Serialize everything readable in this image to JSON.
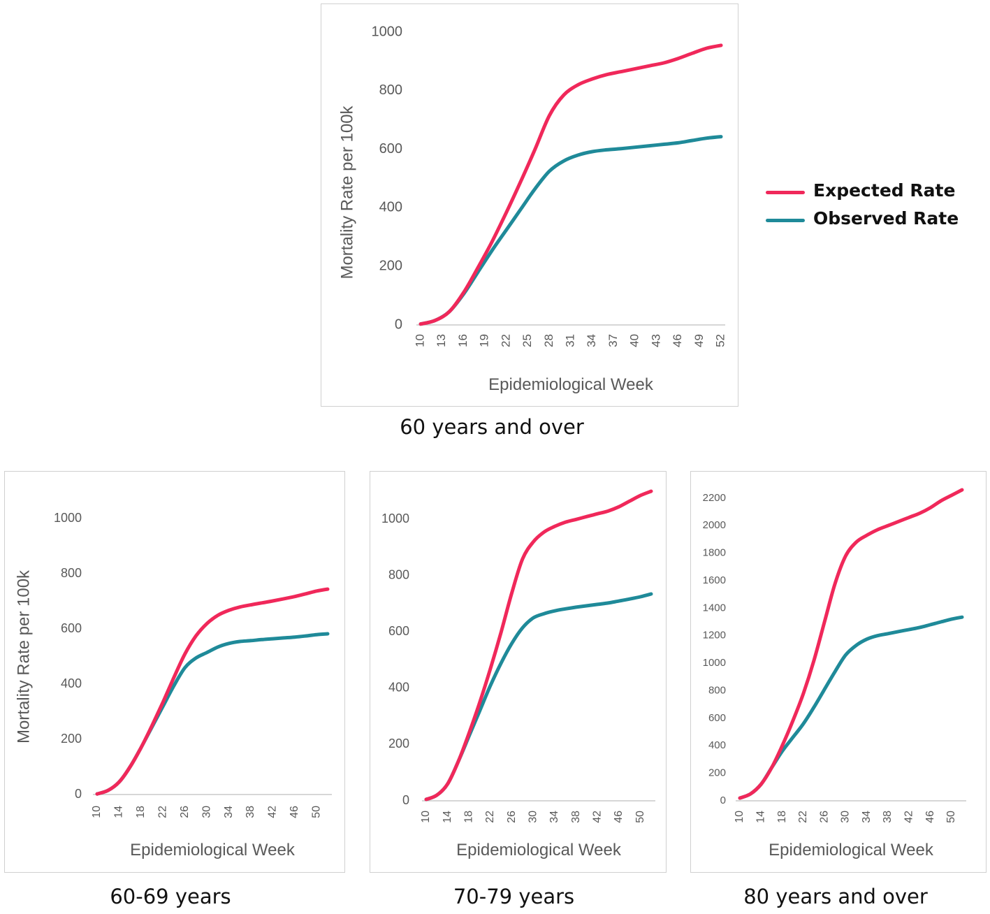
{
  "colors": {
    "expected": "#f0285a",
    "observed": "#1f8a99",
    "axis": "#bfbfbf",
    "text": "#595959"
  },
  "legend": [
    {
      "label": "Expected Rate",
      "color": "#f0285a"
    },
    {
      "label": "Observed Rate",
      "color": "#1f8a99"
    }
  ],
  "chart_data": [
    {
      "type": "line",
      "caption": "60 years and over",
      "xlabel": "Epidemiological Week",
      "ylabel": "Mortality Rate per 100k",
      "xlim": [
        10,
        52
      ],
      "ylim": [
        0,
        1000
      ],
      "yticks": [
        0,
        200,
        400,
        600,
        800,
        1000
      ],
      "xticks": [
        10,
        13,
        16,
        19,
        22,
        25,
        28,
        31,
        34,
        37,
        40,
        43,
        46,
        49,
        52
      ],
      "series": [
        {
          "name": "Expected Rate",
          "color": "#f0285a",
          "x": [
            10,
            12,
            14,
            16,
            18,
            20,
            22,
            24,
            26,
            28,
            30,
            32,
            34,
            36,
            38,
            40,
            42,
            44,
            46,
            48,
            50,
            52
          ],
          "y": [
            3,
            15,
            45,
            110,
            195,
            285,
            385,
            490,
            600,
            715,
            785,
            820,
            840,
            855,
            865,
            875,
            885,
            895,
            910,
            928,
            945,
            955
          ]
        },
        {
          "name": "Observed Rate",
          "color": "#1f8a99",
          "x": [
            10,
            12,
            14,
            16,
            18,
            20,
            22,
            24,
            26,
            28,
            30,
            32,
            34,
            36,
            38,
            40,
            42,
            44,
            46,
            48,
            50,
            52
          ],
          "y": [
            3,
            15,
            45,
            105,
            180,
            255,
            325,
            395,
            465,
            525,
            560,
            580,
            592,
            598,
            602,
            607,
            612,
            617,
            622,
            630,
            638,
            643
          ]
        }
      ]
    },
    {
      "type": "line",
      "caption": "60-69 years",
      "xlabel": "Epidemiological Week",
      "ylabel": "Mortality Rate per 100k",
      "xlim": [
        10,
        52
      ],
      "ylim": [
        0,
        1100
      ],
      "yticks": [
        0,
        200,
        400,
        600,
        800,
        1000
      ],
      "xticks": [
        10,
        14,
        18,
        22,
        26,
        30,
        34,
        38,
        42,
        46,
        50
      ],
      "series": [
        {
          "name": "Expected Rate",
          "color": "#f0285a",
          "x": [
            10,
            12,
            14,
            16,
            18,
            20,
            22,
            24,
            26,
            28,
            30,
            32,
            34,
            36,
            38,
            40,
            42,
            44,
            46,
            48,
            50,
            52
          ],
          "y": [
            2,
            15,
            45,
            100,
            170,
            250,
            335,
            425,
            510,
            575,
            620,
            650,
            668,
            680,
            688,
            695,
            702,
            710,
            718,
            728,
            738,
            745
          ]
        },
        {
          "name": "Observed Rate",
          "color": "#1f8a99",
          "x": [
            10,
            12,
            14,
            16,
            18,
            20,
            22,
            24,
            26,
            28,
            30,
            32,
            34,
            36,
            38,
            40,
            42,
            44,
            46,
            48,
            50,
            52
          ],
          "y": [
            2,
            15,
            45,
            100,
            170,
            245,
            320,
            395,
            460,
            495,
            515,
            535,
            548,
            555,
            558,
            562,
            565,
            568,
            571,
            575,
            580,
            583
          ]
        }
      ]
    },
    {
      "type": "line",
      "caption": "70-79 years",
      "xlabel": "Epidemiological Week",
      "ylabel": "",
      "xlim": [
        10,
        52
      ],
      "ylim": [
        0,
        1100
      ],
      "yticks": [
        0,
        200,
        400,
        600,
        800,
        1000
      ],
      "xticks": [
        10,
        14,
        18,
        22,
        26,
        30,
        34,
        38,
        42,
        46,
        50
      ],
      "series": [
        {
          "name": "Expected Rate",
          "color": "#f0285a",
          "x": [
            10,
            12,
            14,
            16,
            18,
            20,
            22,
            24,
            26,
            28,
            30,
            32,
            34,
            36,
            38,
            40,
            42,
            44,
            46,
            48,
            50,
            52
          ],
          "y": [
            5,
            20,
            60,
            140,
            240,
            350,
            470,
            600,
            740,
            860,
            920,
            955,
            975,
            990,
            1000,
            1010,
            1020,
            1030,
            1045,
            1065,
            1085,
            1100
          ]
        },
        {
          "name": "Observed Rate",
          "color": "#1f8a99",
          "x": [
            10,
            12,
            14,
            16,
            18,
            20,
            22,
            24,
            26,
            28,
            30,
            32,
            34,
            36,
            38,
            40,
            42,
            44,
            46,
            48,
            50,
            52
          ],
          "y": [
            5,
            20,
            60,
            140,
            230,
            320,
            410,
            490,
            560,
            615,
            650,
            665,
            675,
            682,
            688,
            693,
            698,
            703,
            710,
            717,
            725,
            735
          ]
        }
      ]
    },
    {
      "type": "line",
      "caption": "80 years and over",
      "xlabel": "Epidemiological Week",
      "ylabel": "",
      "xlim": [
        10,
        52
      ],
      "ylim": [
        0,
        2250
      ],
      "yticks": [
        0,
        200,
        400,
        600,
        800,
        1000,
        1200,
        1400,
        1600,
        1800,
        2000,
        2200
      ],
      "xticks": [
        10,
        14,
        18,
        22,
        26,
        30,
        34,
        38,
        42,
        46,
        50
      ],
      "series": [
        {
          "name": "Expected Rate",
          "color": "#f0285a",
          "x": [
            10,
            12,
            14,
            16,
            18,
            20,
            22,
            24,
            26,
            28,
            30,
            32,
            34,
            36,
            38,
            40,
            42,
            44,
            46,
            48,
            50,
            52
          ],
          "y": [
            20,
            50,
            120,
            240,
            400,
            580,
            780,
            1020,
            1300,
            1580,
            1780,
            1880,
            1930,
            1970,
            2000,
            2030,
            2060,
            2090,
            2130,
            2180,
            2220,
            2260
          ]
        },
        {
          "name": "Observed Rate",
          "color": "#1f8a99",
          "x": [
            10,
            12,
            14,
            16,
            18,
            20,
            22,
            24,
            26,
            28,
            30,
            32,
            34,
            36,
            38,
            40,
            42,
            44,
            46,
            48,
            50,
            52
          ],
          "y": [
            20,
            50,
            120,
            240,
            360,
            460,
            560,
            680,
            810,
            940,
            1060,
            1130,
            1175,
            1200,
            1215,
            1230,
            1245,
            1260,
            1280,
            1300,
            1320,
            1335
          ]
        }
      ]
    }
  ]
}
